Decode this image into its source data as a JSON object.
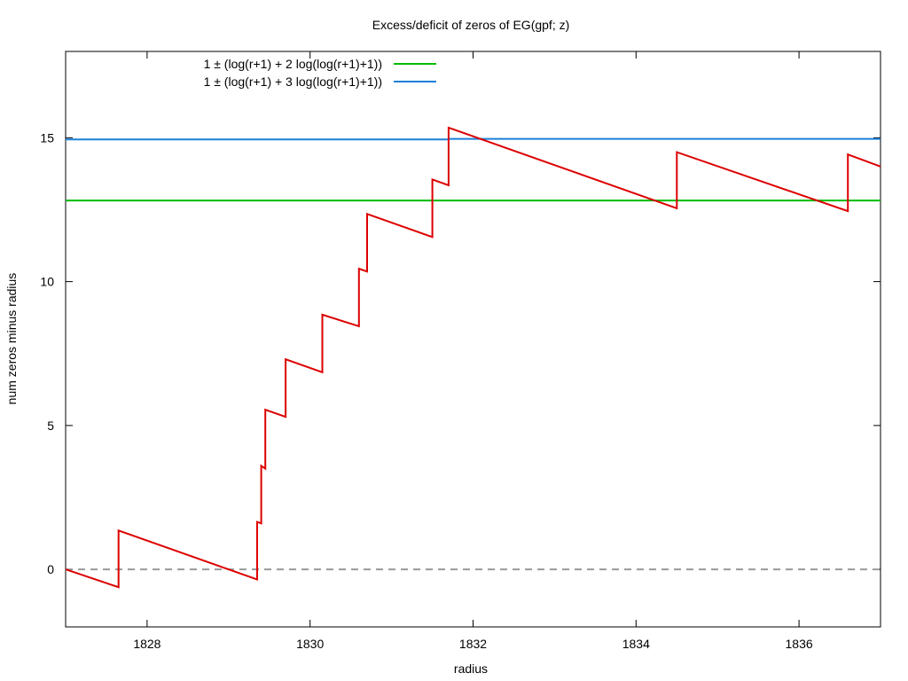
{
  "chart_data": {
    "type": "line",
    "title": "Excess/deficit of zeros of EG(gpf; z)",
    "xlabel": "radius",
    "ylabel": "num zeros minus radius",
    "xlim": [
      1827,
      1837
    ],
    "ylim": [
      -2,
      18
    ],
    "x_ticks": [
      1828,
      1830,
      1832,
      1834,
      1836
    ],
    "y_ticks": [
      0,
      5,
      10,
      15
    ],
    "grid": false,
    "legend": {
      "placement": "top-left"
    },
    "series": [
      {
        "name": "1 ± (log(r+1) + 2 log(log(r+1)+1))",
        "color": "#00bb00",
        "x": [
          1827,
          1837
        ],
        "y": [
          12.82,
          12.82
        ]
      },
      {
        "name": "1 ± (log(r+1) + 3 log(log(r+1)+1))",
        "color": "#1a7fd6",
        "x": [
          1827,
          1831.7,
          1831.7,
          1837
        ],
        "y": [
          14.94,
          14.94,
          14.96,
          14.96
        ]
      },
      {
        "color": "#dd0000",
        "x": [
          1827,
          1827.65,
          1827.65,
          1829.35,
          1829.35,
          1829.4,
          1829.4,
          1829.45,
          1829.45,
          1829.7,
          1829.7,
          1830.15,
          1830.15,
          1830.6,
          1830.6,
          1830.7,
          1830.7,
          1831.5,
          1831.5,
          1831.5,
          1831.5,
          1831.7,
          1831.7,
          1834.5,
          1834.5,
          1836.6,
          1836.6,
          1837
        ],
        "y": [
          0,
          -0.62,
          1.35,
          -0.35,
          1.65,
          1.6,
          3.6,
          3.5,
          5.55,
          5.3,
          7.3,
          6.85,
          8.85,
          8.45,
          10.45,
          10.35,
          12.35,
          11.55,
          12.5,
          12.5,
          13.55,
          13.35,
          15.35,
          12.55,
          14.5,
          12.45,
          14.42,
          14.0
        ]
      },
      {
        "color": "#999999",
        "dash": "dashed",
        "x": [
          1827,
          1837
        ],
        "y": [
          0,
          0
        ]
      }
    ]
  }
}
